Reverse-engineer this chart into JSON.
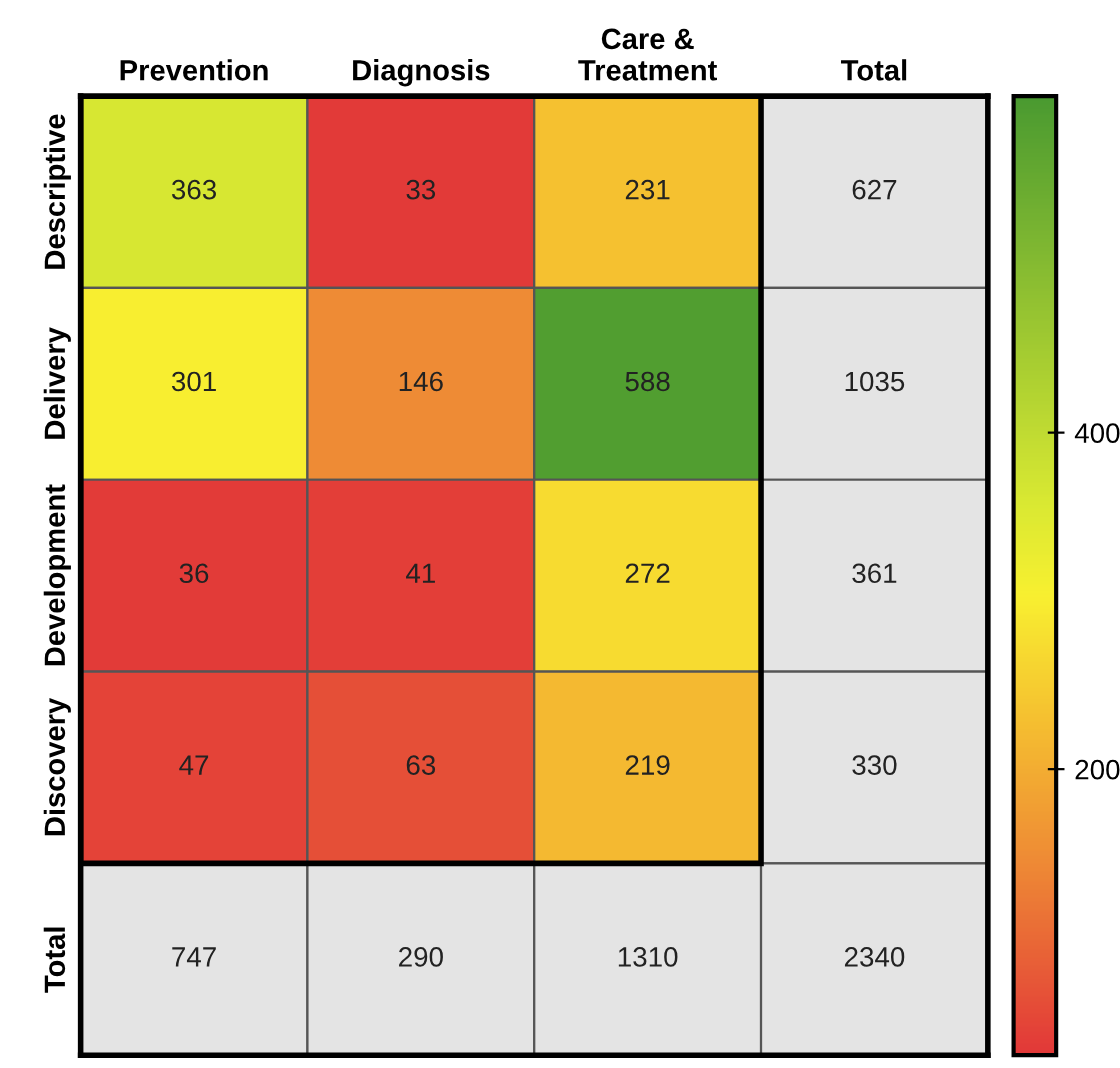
{
  "chart_data": {
    "type": "heatmap",
    "categories": [
      "Prevention",
      "Diagnosis",
      "Care &\nTreatment",
      "Total"
    ],
    "y_categories": [
      "Descriptive",
      "Delivery",
      "Development",
      "Discovery",
      "Total"
    ],
    "cells": [
      [
        363,
        33,
        231,
        null
      ],
      [
        301,
        146,
        588,
        null
      ],
      [
        36,
        41,
        272,
        null
      ],
      [
        47,
        63,
        219,
        null
      ],
      [
        null,
        null,
        null,
        null
      ]
    ],
    "cell_labels": [
      [
        "363",
        "33",
        "231",
        "627"
      ],
      [
        "301",
        "146",
        "588",
        "1035"
      ],
      [
        "36",
        "41",
        "272",
        "361"
      ],
      [
        "47",
        "63",
        "219",
        "330"
      ],
      [
        "747",
        "290",
        "1310",
        "2340"
      ]
    ],
    "clim": [
      30,
      600
    ],
    "cticks": [
      200,
      400
    ]
  }
}
